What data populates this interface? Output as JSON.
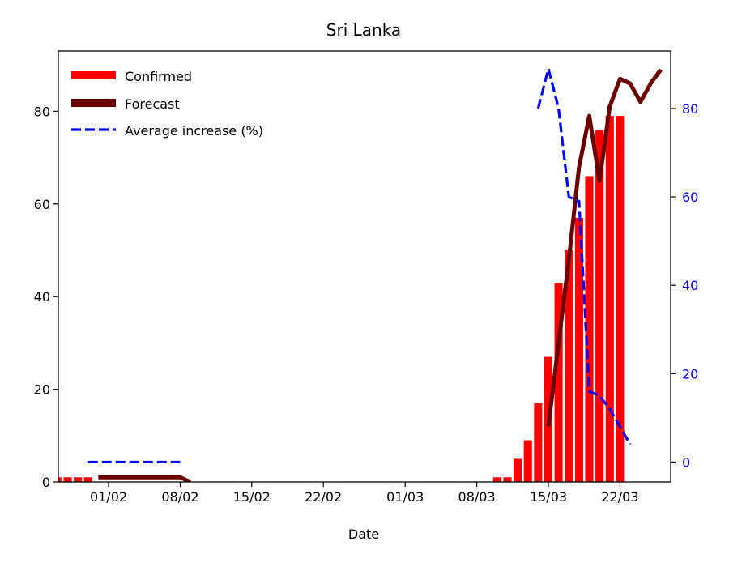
{
  "chart_data": {
    "type": "bar",
    "title": "Sri Lanka",
    "xlabel": "Date",
    "ylabel": "",
    "ylabel_right": "",
    "ylim": [
      0,
      93
    ],
    "ylim_right": [
      -4.5,
      93
    ],
    "y_ticks": [
      0,
      20,
      40,
      60,
      80
    ],
    "y_ticks_right": [
      0,
      20,
      40,
      60,
      80
    ],
    "x_ticks": [
      "01/02",
      "08/02",
      "15/02",
      "22/02",
      "01/03",
      "08/03",
      "15/03",
      "22/03"
    ],
    "legend_position": "top-left",
    "colors": {
      "confirmed": "#ff0000",
      "forecast": "#6b0000",
      "average": "#0000ff",
      "right_axis": "#0000ff"
    },
    "confirmed": {
      "name": "Confirmed",
      "dates": [
        "27/01",
        "28/01",
        "29/01",
        "30/01",
        "10/03",
        "11/03",
        "12/03",
        "13/03",
        "14/03",
        "15/03",
        "16/03",
        "17/03",
        "18/03",
        "19/03",
        "20/03",
        "21/03",
        "22/03",
        "23/03"
      ],
      "values": [
        1,
        1,
        1,
        1,
        1,
        1,
        5,
        9,
        17,
        27,
        43,
        50,
        57,
        66,
        76,
        79,
        79,
        0
      ]
    },
    "forecast": {
      "name": "Forecast",
      "dates": [
        "31/01",
        "08/02",
        "09/02",
        "15/03",
        "16/03",
        "17/03",
        "18/03",
        "19/03",
        "20/03",
        "21/03",
        "22/03",
        "23/03",
        "24/03",
        "25/03",
        "26/03"
      ],
      "values": [
        1,
        1,
        0,
        12,
        30,
        48,
        68,
        79,
        65,
        81,
        87,
        86,
        82,
        86,
        89
      ]
    },
    "average_increase": {
      "name": "Average increase (%)",
      "axis": "right",
      "segments": [
        {
          "dates": [
            "30/01",
            "08/02"
          ],
          "values": [
            0,
            0
          ]
        },
        {
          "dates": [
            "14/03",
            "15/03",
            "16/03",
            "17/03",
            "18/03",
            "19/03",
            "20/03",
            "21/03",
            "23/03"
          ],
          "values": [
            80,
            89,
            80,
            60,
            59,
            16,
            15,
            12,
            4
          ]
        }
      ]
    }
  }
}
